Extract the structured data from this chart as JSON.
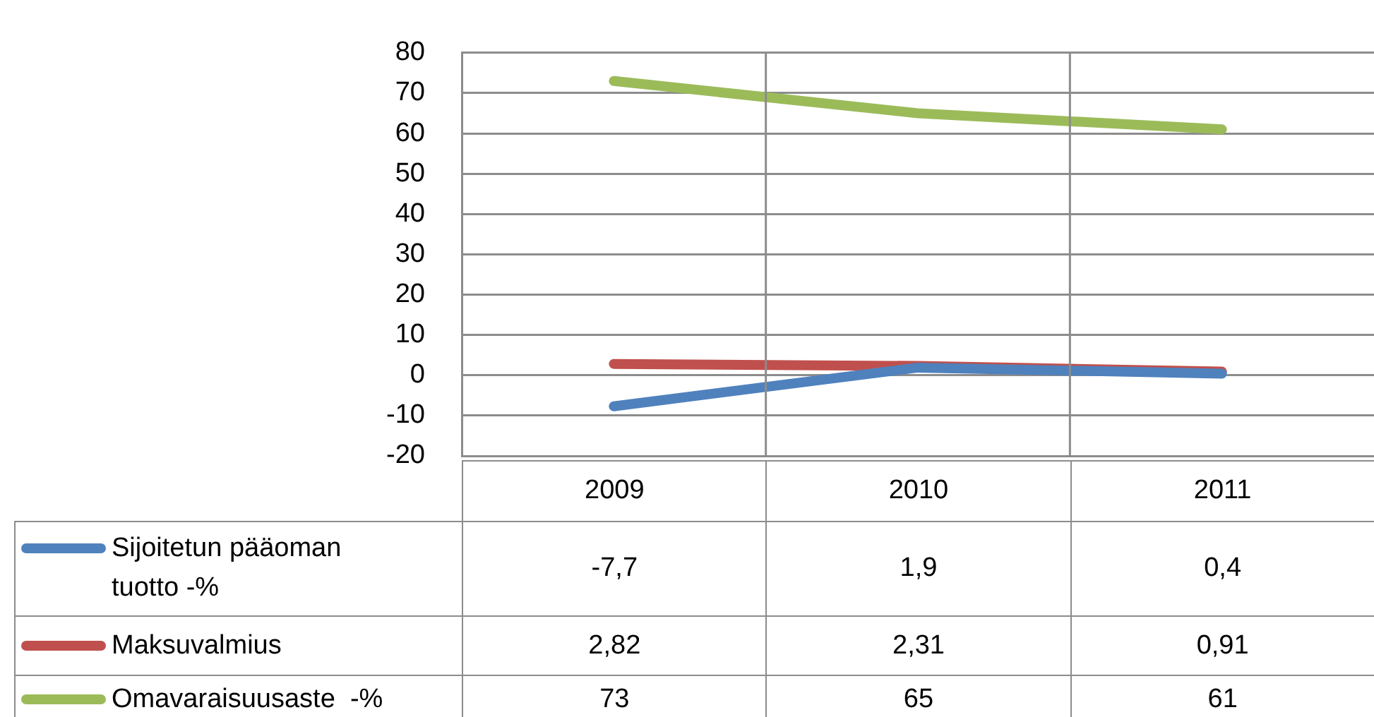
{
  "chart_data": {
    "type": "line",
    "categories": [
      "2009",
      "2010",
      "2011"
    ],
    "series": [
      {
        "name": "Sijoitetun pääoman tuotto -%",
        "color": "#4f81bd",
        "values": [
          -7.7,
          1.9,
          0.4
        ],
        "value_labels": [
          "-7,7",
          "1,9",
          "0,4"
        ]
      },
      {
        "name": "Maksuvalmius",
        "color": "#c0504d",
        "values": [
          2.82,
          2.31,
          0.91
        ],
        "value_labels": [
          "2,82",
          "2,31",
          "0,91"
        ]
      },
      {
        "name": "Omavaraisuusaste  -%",
        "color": "#9bbb59",
        "values": [
          73,
          65,
          61
        ],
        "value_labels": [
          "73",
          "65",
          "61"
        ]
      }
    ],
    "ylim": [
      -20,
      80
    ],
    "yticks": [
      -20,
      -10,
      0,
      10,
      20,
      30,
      40,
      50,
      60,
      70,
      80
    ],
    "grid": "y",
    "legend": "bottom",
    "marker": "none",
    "line_style": "solid"
  }
}
